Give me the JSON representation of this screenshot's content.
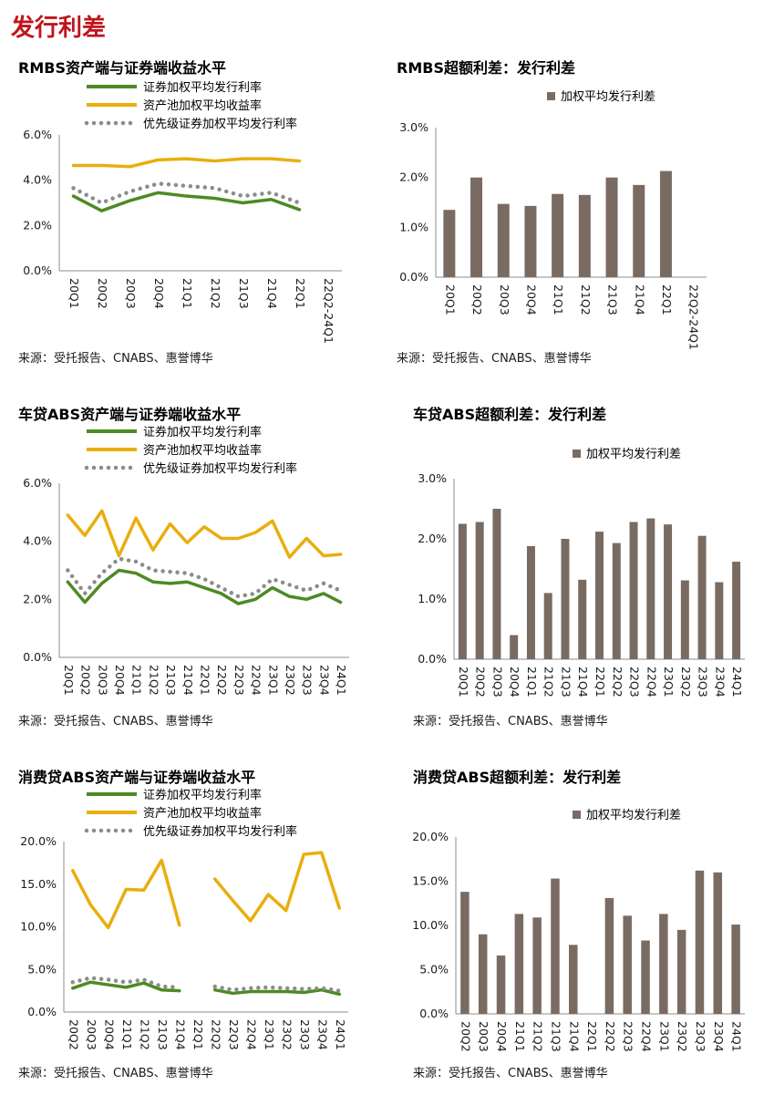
{
  "page": {
    "title": "发行利差"
  },
  "chart_data": [
    {
      "id": "rmbs-line",
      "type": "line",
      "title": "RMBS资产端与证券端收益水平",
      "source": "来源：受托报告、CNABS、惠誉博华",
      "categories": [
        "20Q1",
        "20Q2",
        "20Q3",
        "20Q4",
        "21Q1",
        "21Q2",
        "21Q3",
        "21Q4",
        "22Q1",
        "22Q2-24Q1"
      ],
      "ylim": [
        0,
        6
      ],
      "yticks": [
        "0.0%",
        "2.0%",
        "4.0%",
        "6.0%"
      ],
      "series": [
        {
          "name": "证券加权平均发行利率",
          "values": [
            3.3,
            2.65,
            3.1,
            3.45,
            3.3,
            3.2,
            3.0,
            3.15,
            2.7,
            null
          ],
          "color": "#4e8a24",
          "style": "solid"
        },
        {
          "name": "资产池加权平均收益率",
          "values": [
            4.65,
            4.65,
            4.6,
            4.9,
            4.95,
            4.85,
            4.95,
            4.95,
            4.85,
            null
          ],
          "color": "#e9ae0e",
          "style": "solid"
        },
        {
          "name": "优先级证券加权平均发行利率",
          "values": [
            3.65,
            3.0,
            3.5,
            3.85,
            3.75,
            3.65,
            3.3,
            3.45,
            3.0,
            null
          ],
          "color": "#8c8c8c",
          "style": "dotted"
        }
      ]
    },
    {
      "id": "rmbs-bar",
      "type": "bar",
      "title": "RMBS超额利差：发行利差",
      "source": "来源：受托报告、CNABS、惠誉博华",
      "categories": [
        "20Q1",
        "20Q2",
        "20Q3",
        "20Q4",
        "21Q1",
        "21Q2",
        "21Q3",
        "21Q4",
        "22Q1",
        "22Q2-24Q1"
      ],
      "ylim": [
        0,
        3
      ],
      "yticks": [
        "0.0%",
        "1.0%",
        "2.0%",
        "3.0%"
      ],
      "series": [
        {
          "name": "加权平均发行利差",
          "values": [
            1.35,
            2.0,
            1.47,
            1.43,
            1.67,
            1.65,
            2.0,
            1.85,
            2.13,
            null
          ],
          "color": "#7a6b62"
        }
      ]
    },
    {
      "id": "auto-line",
      "type": "line",
      "title": "车贷ABS资产端与证券端收益水平",
      "source": "来源：受托报告、CNABS、惠誉博华",
      "categories": [
        "20Q1",
        "20Q2",
        "20Q3",
        "20Q4",
        "21Q1",
        "21Q2",
        "21Q3",
        "21Q4",
        "22Q1",
        "22Q2",
        "22Q3",
        "22Q4",
        "23Q1",
        "23Q2",
        "23Q3",
        "23Q4",
        "24Q1"
      ],
      "ylim": [
        0,
        6
      ],
      "yticks": [
        "0.0%",
        "2.0%",
        "4.0%",
        "6.0%"
      ],
      "series": [
        {
          "name": "证券加权平均发行利率",
          "values": [
            2.6,
            1.9,
            2.55,
            3.0,
            2.9,
            2.6,
            2.55,
            2.6,
            2.4,
            2.2,
            1.85,
            2.0,
            2.4,
            2.1,
            2.0,
            2.2,
            1.9
          ],
          "color": "#4e8a24",
          "style": "solid"
        },
        {
          "name": "资产池加权平均收益率",
          "values": [
            4.9,
            4.2,
            5.05,
            3.5,
            4.8,
            3.7,
            4.6,
            3.95,
            4.5,
            4.1,
            4.1,
            4.3,
            4.7,
            3.45,
            4.1,
            3.5,
            3.55
          ],
          "color": "#e9ae0e",
          "style": "solid"
        },
        {
          "name": "优先级证券加权平均发行利率",
          "values": [
            3.0,
            2.2,
            2.9,
            3.4,
            3.3,
            3.0,
            2.95,
            2.9,
            2.7,
            2.4,
            2.1,
            2.2,
            2.7,
            2.5,
            2.3,
            2.55,
            2.3
          ],
          "color": "#8c8c8c",
          "style": "dotted"
        }
      ]
    },
    {
      "id": "auto-bar",
      "type": "bar",
      "title": "车贷ABS超额利差：发行利差",
      "source": "来源：受托报告、CNABS、惠誉博华",
      "categories": [
        "20Q1",
        "20Q2",
        "20Q3",
        "20Q4",
        "21Q1",
        "21Q2",
        "21Q3",
        "21Q4",
        "22Q1",
        "22Q2",
        "22Q3",
        "22Q4",
        "23Q1",
        "23Q2",
        "23Q3",
        "23Q4",
        "24Q1"
      ],
      "ylim": [
        0,
        3
      ],
      "yticks": [
        "0.0%",
        "1.0%",
        "2.0%",
        "3.0%"
      ],
      "series": [
        {
          "name": "加权平均发行利差",
          "values": [
            2.25,
            2.28,
            2.5,
            0.4,
            1.88,
            1.1,
            2.0,
            1.32,
            2.12,
            1.93,
            2.28,
            2.34,
            2.24,
            1.31,
            2.05,
            1.28,
            1.62
          ],
          "color": "#7a6b62"
        }
      ]
    },
    {
      "id": "consumer-line",
      "type": "line",
      "title": "消费贷ABS资产端与证券端收益水平",
      "source": "来源：受托报告、CNABS、惠誉博华",
      "categories": [
        "20Q2",
        "20Q3",
        "20Q4",
        "21Q1",
        "21Q2",
        "21Q3",
        "21Q4",
        "22Q1",
        "22Q2",
        "22Q3",
        "22Q4",
        "23Q1",
        "23Q2",
        "23Q3",
        "23Q4",
        "24Q1"
      ],
      "ylim": [
        0,
        20
      ],
      "yticks": [
        "0.0%",
        "5.0%",
        "10.0%",
        "15.0%",
        "20.0%"
      ],
      "series": [
        {
          "name": "证券加权平均发行利率",
          "values": [
            2.8,
            3.5,
            3.2,
            2.9,
            3.4,
            2.6,
            2.5,
            null,
            2.6,
            2.2,
            2.4,
            2.4,
            2.4,
            2.3,
            2.6,
            2.1
          ],
          "color": "#4e8a24",
          "style": "solid"
        },
        {
          "name": "资产池加权平均收益率",
          "values": [
            16.6,
            12.6,
            9.9,
            14.4,
            14.3,
            17.8,
            10.2,
            null,
            15.6,
            13.1,
            10.7,
            13.8,
            11.9,
            18.5,
            18.7,
            12.2
          ],
          "color": "#e9ae0e",
          "style": "solid"
        },
        {
          "name": "优先级证券加权平均发行利率",
          "values": [
            3.5,
            4.0,
            3.8,
            3.5,
            3.8,
            3.0,
            2.9,
            null,
            3.0,
            2.6,
            2.8,
            2.9,
            2.8,
            2.7,
            2.8,
            2.5
          ],
          "color": "#8c8c8c",
          "style": "dotted"
        }
      ]
    },
    {
      "id": "consumer-bar",
      "type": "bar",
      "title": "消费贷ABS超额利差：发行利差",
      "source": "来源：受托报告、CNABS、惠誉博华",
      "categories": [
        "20Q2",
        "20Q3",
        "20Q4",
        "21Q1",
        "21Q2",
        "21Q3",
        "21Q4",
        "22Q1",
        "22Q2",
        "22Q3",
        "22Q4",
        "23Q1",
        "23Q2",
        "23Q3",
        "23Q4",
        "24Q1"
      ],
      "ylim": [
        0,
        20
      ],
      "yticks": [
        "0.0%",
        "5.0%",
        "10.0%",
        "15.0%",
        "20.0%"
      ],
      "series": [
        {
          "name": "加权平均发行利差",
          "values": [
            13.8,
            9.0,
            6.6,
            11.3,
            10.9,
            15.3,
            7.8,
            null,
            13.1,
            11.1,
            8.3,
            11.3,
            9.5,
            16.2,
            16.0,
            10.1
          ],
          "color": "#7a6b62"
        }
      ]
    }
  ]
}
